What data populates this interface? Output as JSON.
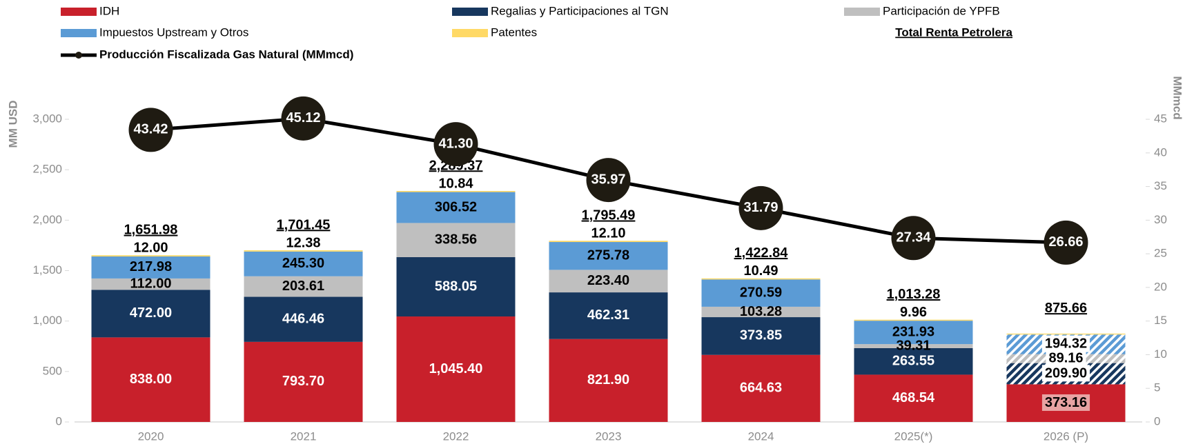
{
  "chart_data": {
    "type": "bar",
    "stacked": true,
    "categories": [
      "2020",
      "2021",
      "2022",
      "2023",
      "2024",
      "2025(*)",
      "2026 (P)"
    ],
    "series": [
      {
        "name": "IDH",
        "color": "#c8202b",
        "values": [
          838,
          793.7,
          1045.4,
          821.9,
          664.63,
          468.54,
          373.16
        ],
        "value_labels": [
          "838.00",
          "793.70",
          "1,045.40",
          "821.90",
          "664.63",
          "468.54",
          "373.16"
        ]
      },
      {
        "name": "Regalias y Participaciones al TGN",
        "color": "#17375e",
        "hatch_projected": true,
        "values": [
          472,
          446.46,
          588.05,
          462.31,
          373.85,
          263.55,
          209.9
        ],
        "value_labels": [
          "472.00",
          "446.46",
          "588.05",
          "462.31",
          "373.85",
          "263.55",
          "209.90"
        ]
      },
      {
        "name": "Participación de YPFB",
        "color": "#bfbfbf",
        "hatch_projected": true,
        "values": [
          112,
          203.61,
          338.56,
          223.4,
          103.28,
          39.31,
          89.16
        ],
        "value_labels": [
          "112.00",
          "203.61",
          "338.56",
          "223.40",
          "103.28",
          "39.31",
          "89.16"
        ]
      },
      {
        "name": "Impuestos Upstream y Otros",
        "color": "#5b9bd5",
        "hatch_projected": true,
        "values": [
          217.98,
          245.3,
          306.52,
          275.78,
          270.59,
          231.93,
          194.32
        ],
        "value_labels": [
          "217.98",
          "245.30",
          "306.52",
          "275.78",
          "270.59",
          "231.93",
          "194.32"
        ]
      },
      {
        "name": "Patentes",
        "color": "#ffd966",
        "values": [
          12,
          12.38,
          10.84,
          12.1,
          10.49,
          9.96,
          9.12
        ],
        "value_labels": [
          "12.00",
          "12.38",
          "10.84",
          "12.10",
          "10.49",
          "9.96",
          null
        ]
      }
    ],
    "totals": {
      "name": "Total Renta Petrolera",
      "values": [
        1651.98,
        1701.45,
        2289.37,
        1795.49,
        1422.84,
        1013.28,
        875.66
      ],
      "value_labels": [
        "1,651.98",
        "1,701.45",
        "2,289.37",
        "1,795.49",
        "1,422.84",
        "1,013.28",
        "875.66"
      ]
    },
    "line": {
      "type": "line",
      "name": "Producción Fiscalizada Gas Natural (MMmcd)",
      "color": "#000000",
      "marker_color": "#1f1b12",
      "axis": "y2",
      "values": [
        43.42,
        45.12,
        41.3,
        35.97,
        31.79,
        27.34,
        26.66
      ],
      "value_labels": [
        "43.42",
        "45.12",
        "41.30",
        "35.97",
        "31.79",
        "27.34",
        "26.66"
      ]
    },
    "projected_category": 6,
    "ylabel": "MM USD",
    "y2label": "MMmcd",
    "ylim": [
      0,
      3000
    ],
    "yticks": [
      0,
      500,
      {
        "value": 1000,
        "label": "1,000"
      },
      {
        "value": 1500,
        "label": "1,500"
      },
      {
        "value": 2000,
        "label": "2,000"
      },
      {
        "value": 2500,
        "label": "2,500"
      },
      {
        "value": 3000,
        "label": "3,000"
      }
    ],
    "y2lim": [
      0,
      45
    ],
    "y2ticks": [
      0,
      5,
      10,
      15,
      20,
      25,
      30,
      35,
      40,
      45
    ]
  }
}
